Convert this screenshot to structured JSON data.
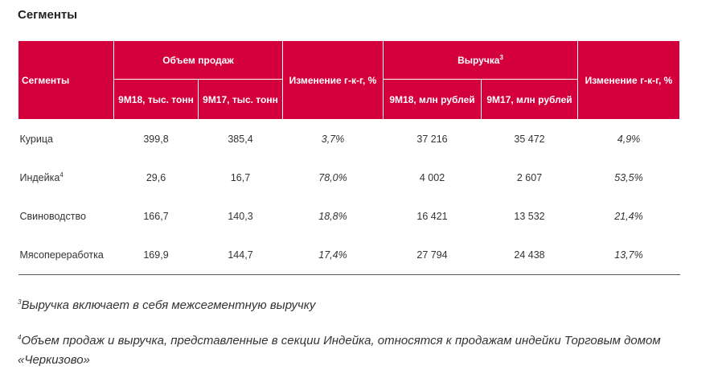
{
  "title": "Сегменты",
  "table": {
    "header": {
      "segments": "Сегменты",
      "volume": "Объем продаж",
      "volume_change": "Изменение г-к-г, %",
      "revenue": "Выручка",
      "revenue_sup": "3",
      "revenue_change": "Изменение г-к-г, %",
      "sub": [
        "9М18, тыс. тонн",
        "9М17, тыс. тонн",
        "9М18, млн рублей",
        "9М17, млн рублей"
      ]
    },
    "rows": [
      {
        "name": "Курица",
        "cells": [
          "399,8",
          "385,4",
          "3,7%",
          "37 216",
          "35 472",
          "4,9%"
        ]
      },
      {
        "name": "Индейка",
        "sup": "4",
        "cells": [
          "29,6",
          "16,7",
          "78,0%",
          "4 002",
          "2 607",
          "53,5%"
        ]
      },
      {
        "name": "Свиноводство",
        "cells": [
          "166,7",
          "140,3",
          "18,8%",
          "16 421",
          "13 532",
          "21,4%"
        ]
      },
      {
        "name": "Мясопереработка",
        "cells": [
          "169,9",
          "144,7",
          "17,4%",
          "27 794",
          "24 438",
          "13,7%"
        ]
      }
    ]
  },
  "footnotes": [
    {
      "sup": "3",
      "text": "Выручка включает в себя межсегментную выручку"
    },
    {
      "sup": "4",
      "text": "Объем продаж и выручка, представленные в секции Индейка, относятся к продажам индейки Торговым домом «Черкизово»"
    }
  ]
}
